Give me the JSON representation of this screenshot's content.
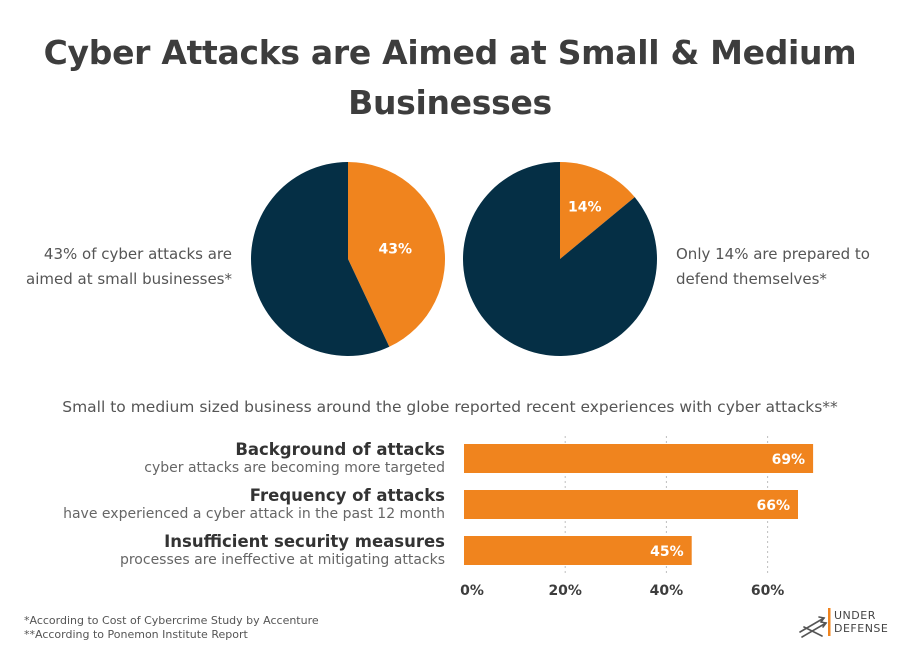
{
  "title": {
    "line1": "Cyber Attacks are Aimed at Small & Medium",
    "line2": "Businesses"
  },
  "pie_captions": {
    "left_line1": "43% of cyber attacks are",
    "left_line2": "aimed at small businesses*",
    "right_line1": "Only 14% are prepared to",
    "right_line2": "defend themselves*"
  },
  "subtitle": "Small to medium sized business around the globe reported recent experiences with cyber attacks**",
  "bars": [
    {
      "head": "Background of attacks",
      "sub": "cyber attacks are becoming more targeted"
    },
    {
      "head": "Frequency of attacks",
      "sub": "have experienced a cyber attack in the past 12 month"
    },
    {
      "head": "Insufficient security measures",
      "sub": "processes are ineffective at mitigating attacks"
    }
  ],
  "footnotes": {
    "line1": "*According to Cost of Cybercrime Study by Accenture",
    "line2": "**According to Ponemon Institute Report"
  },
  "logo": {
    "line1": "UNDER",
    "line2": "DEFENSE",
    "icon": "arrows-logo-icon"
  },
  "colors": {
    "accent": "#F0841E",
    "dark": "#052F45",
    "grid": "#bfbfbf",
    "text": "#3d3d3d"
  },
  "chart_data": [
    {
      "type": "pie",
      "slices": [
        {
          "label": "43%",
          "value": 43,
          "color": "#F0841E"
        },
        {
          "label": "",
          "value": 57,
          "color": "#052F45"
        }
      ]
    },
    {
      "type": "pie",
      "slices": [
        {
          "label": "14%",
          "value": 14,
          "color": "#F0841E"
        },
        {
          "label": "",
          "value": 86,
          "color": "#052F45"
        }
      ]
    },
    {
      "type": "bar",
      "orientation": "horizontal",
      "categories": [
        "Background of attacks",
        "Frequency of attacks",
        "Insufficient security measures"
      ],
      "values": [
        69,
        66,
        45
      ],
      "value_labels": [
        "69%",
        "66%",
        "45%"
      ],
      "xlim": [
        0,
        70
      ],
      "xticks": [
        0,
        20,
        40,
        60
      ],
      "xtick_labels": [
        "0%",
        "20%",
        "40%",
        "60%"
      ],
      "grid": true,
      "color": "#F0841E"
    }
  ]
}
